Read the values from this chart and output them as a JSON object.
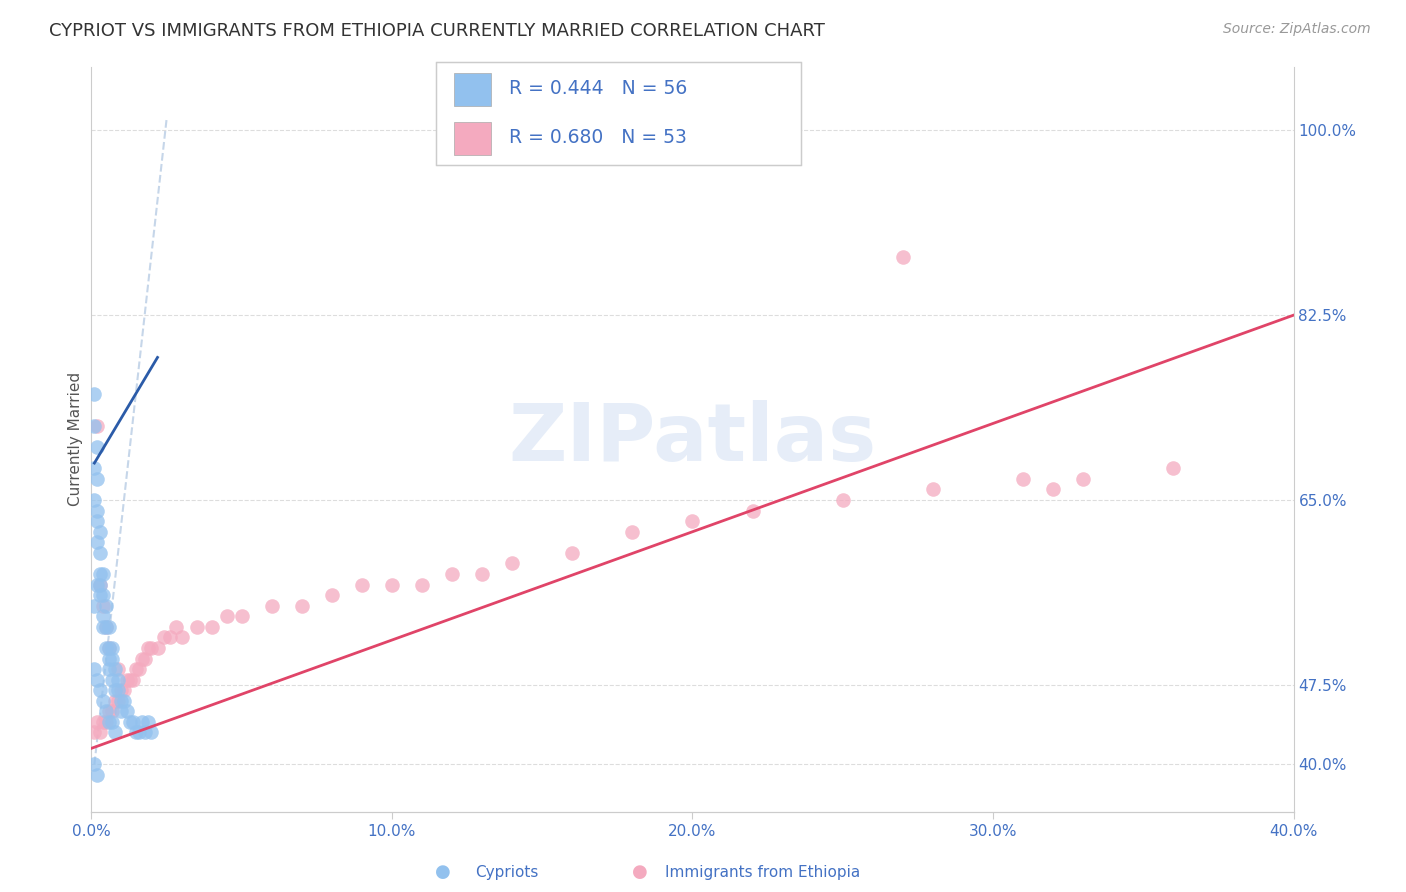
{
  "title": "CYPRIOT VS IMMIGRANTS FROM ETHIOPIA CURRENTLY MARRIED CORRELATION CHART",
  "source": "Source: ZipAtlas.com",
  "ylabel": "Currently Married",
  "watermark": "ZIPatlas",
  "cypriot_R": 0.444,
  "cypriot_N": 56,
  "ethiopia_R": 0.68,
  "ethiopia_N": 53,
  "xlim": [
    0.0,
    0.4
  ],
  "ylim": [
    0.355,
    1.06
  ],
  "xticks": [
    0.0,
    0.1,
    0.2,
    0.3,
    0.4
  ],
  "xtick_labels": [
    "0.0%",
    "10.0%",
    "20.0%",
    "30.0%",
    "40.0%"
  ],
  "ytick_labels_right": [
    "40.0%",
    "47.5%",
    "65.0%",
    "82.5%",
    "100.0%"
  ],
  "yticks_right": [
    0.4,
    0.475,
    0.65,
    0.825,
    1.0
  ],
  "cypriot_color": "#92C1EE",
  "ethiopia_color": "#F4AABF",
  "cypriot_line_color": "#2B5BA8",
  "ethiopia_line_color": "#E04468",
  "dashed_line_color": "#B8CCE4",
  "grid_color": "#DDDDDD",
  "title_color": "#333333",
  "axis_label_color": "#4472C4",
  "legend_text_color": "#4472C4",
  "cypriot_x": [
    0.001,
    0.001,
    0.001,
    0.001,
    0.002,
    0.002,
    0.002,
    0.002,
    0.002,
    0.003,
    0.003,
    0.003,
    0.003,
    0.003,
    0.004,
    0.004,
    0.004,
    0.004,
    0.005,
    0.005,
    0.005,
    0.006,
    0.006,
    0.006,
    0.006,
    0.007,
    0.007,
    0.007,
    0.008,
    0.008,
    0.009,
    0.009,
    0.01,
    0.01,
    0.011,
    0.012,
    0.013,
    0.014,
    0.015,
    0.016,
    0.017,
    0.018,
    0.019,
    0.02,
    0.001,
    0.002,
    0.003,
    0.004,
    0.005,
    0.006,
    0.007,
    0.008,
    0.001,
    0.002,
    0.001,
    0.002
  ],
  "cypriot_y": [
    0.75,
    0.72,
    0.68,
    0.65,
    0.7,
    0.67,
    0.64,
    0.63,
    0.61,
    0.6,
    0.62,
    0.58,
    0.57,
    0.56,
    0.58,
    0.56,
    0.54,
    0.53,
    0.55,
    0.53,
    0.51,
    0.53,
    0.51,
    0.5,
    0.49,
    0.51,
    0.5,
    0.48,
    0.49,
    0.47,
    0.48,
    0.47,
    0.46,
    0.45,
    0.46,
    0.45,
    0.44,
    0.44,
    0.43,
    0.43,
    0.44,
    0.43,
    0.44,
    0.43,
    0.49,
    0.48,
    0.47,
    0.46,
    0.45,
    0.44,
    0.44,
    0.43,
    0.4,
    0.39,
    0.55,
    0.57
  ],
  "ethiopia_x": [
    0.001,
    0.002,
    0.003,
    0.004,
    0.005,
    0.006,
    0.007,
    0.008,
    0.009,
    0.01,
    0.011,
    0.012,
    0.013,
    0.014,
    0.015,
    0.016,
    0.017,
    0.018,
    0.019,
    0.02,
    0.022,
    0.024,
    0.026,
    0.028,
    0.03,
    0.035,
    0.04,
    0.045,
    0.05,
    0.06,
    0.07,
    0.08,
    0.09,
    0.1,
    0.11,
    0.12,
    0.13,
    0.14,
    0.16,
    0.18,
    0.2,
    0.22,
    0.25,
    0.28,
    0.31,
    0.33,
    0.36,
    0.003,
    0.004,
    0.005,
    0.006,
    0.009,
    0.002
  ],
  "ethiopia_y": [
    0.43,
    0.44,
    0.43,
    0.44,
    0.44,
    0.45,
    0.45,
    0.46,
    0.46,
    0.47,
    0.47,
    0.48,
    0.48,
    0.48,
    0.49,
    0.49,
    0.5,
    0.5,
    0.51,
    0.51,
    0.51,
    0.52,
    0.52,
    0.53,
    0.52,
    0.53,
    0.53,
    0.54,
    0.54,
    0.55,
    0.55,
    0.56,
    0.57,
    0.57,
    0.57,
    0.58,
    0.58,
    0.59,
    0.6,
    0.62,
    0.63,
    0.64,
    0.65,
    0.66,
    0.67,
    0.67,
    0.68,
    0.57,
    0.55,
    0.53,
    0.51,
    0.49,
    0.72
  ],
  "ethiopia_outlier_x": [
    0.27
  ],
  "ethiopia_outlier_y": [
    0.88
  ],
  "ethiopia_outlier2_x": [
    0.32
  ],
  "ethiopia_outlier2_y": [
    0.66
  ],
  "cypriot_regline_x": [
    0.001,
    0.022
  ],
  "cypriot_regline_y": [
    0.685,
    0.785
  ],
  "ethiopia_regline_x": [
    0.0,
    0.4
  ],
  "ethiopia_regline_y": [
    0.415,
    0.825
  ],
  "dashed_line_x": [
    0.001,
    0.025
  ],
  "dashed_line_y": [
    0.4,
    1.01
  ]
}
